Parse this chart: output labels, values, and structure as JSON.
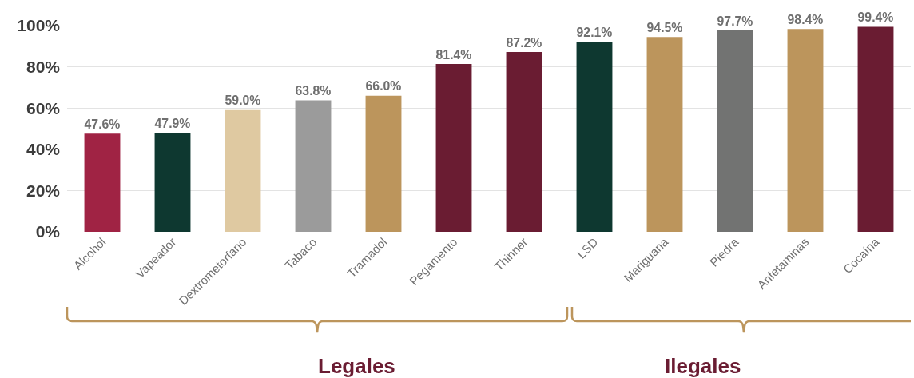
{
  "chart_data": {
    "type": "bar",
    "categories": [
      "Alcohol",
      "Vapeador",
      "Dextrometorfano",
      "Tabaco",
      "Tramadol",
      "Pegamento",
      "Thinner",
      "LSD",
      "Mariguana",
      "Piedra",
      "Anfetaminas",
      "Cocaína"
    ],
    "values": [
      47.6,
      47.9,
      59.0,
      63.8,
      66.0,
      81.4,
      87.2,
      92.1,
      94.5,
      97.7,
      98.4,
      99.4
    ],
    "value_labels": [
      "47.6%",
      "47.9%",
      "59.0%",
      "63.8%",
      "66.0%",
      "81.4%",
      "87.2%",
      "92.1%",
      "94.5%",
      "97.7%",
      "98.4%",
      "99.4%"
    ],
    "colors": [
      "#a02344",
      "#0e3830",
      "#dfc9a1",
      "#9b9b9b",
      "#bc955c",
      "#6a1c32",
      "#6a1c32",
      "#0e3830",
      "#bc955c",
      "#727372",
      "#bc955c",
      "#6a1c32"
    ],
    "ylim": [
      0,
      100
    ],
    "yticks": [
      {
        "value": 0,
        "label": "0%"
      },
      {
        "value": 20,
        "label": "20%"
      },
      {
        "value": 40,
        "label": "40%"
      },
      {
        "value": 60,
        "label": "60%"
      },
      {
        "value": 80,
        "label": "80%"
      },
      {
        "value": 100,
        "label": "100%"
      }
    ],
    "grid": "y",
    "annotations": [
      "Legales",
      "Ilegales"
    ]
  }
}
